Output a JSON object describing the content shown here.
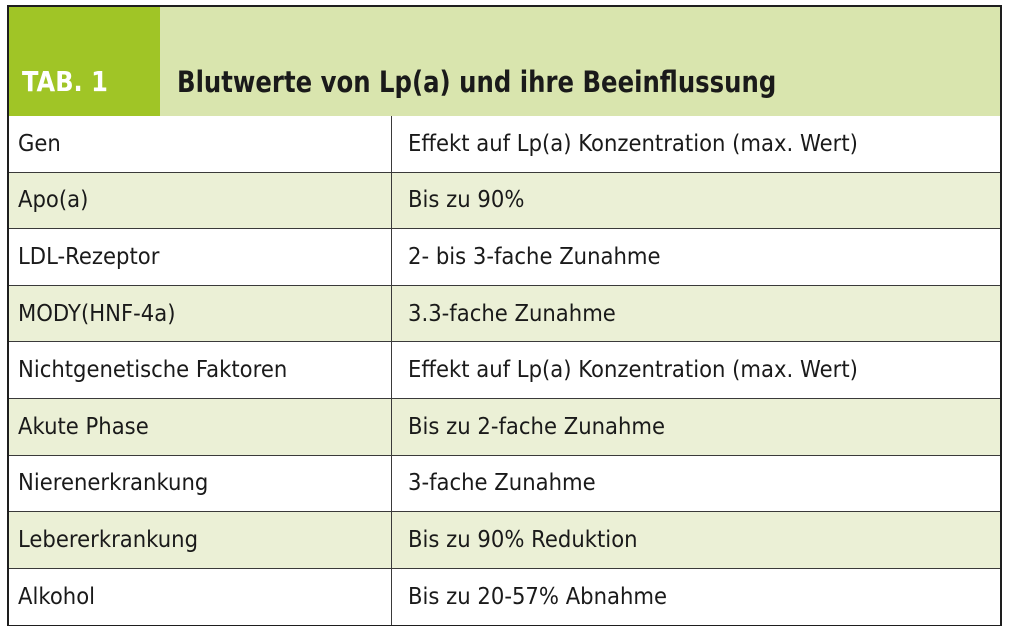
{
  "table": {
    "tab_label": "TAB. 1",
    "title": "Blutwerte von Lp(a) und ihre Beeinflussung",
    "rows": [
      [
        "Gen",
        "Effekt auf Lp(a) Konzentration (max. Wert)"
      ],
      [
        "Apo(a)",
        "Bis zu 90%"
      ],
      [
        "LDL-Rezeptor",
        "2- bis 3-fache Zunahme"
      ],
      [
        "MODY(HNF-4a)",
        "3.3-fache Zunahme"
      ],
      [
        "Nichtgenetische Faktoren",
        "Effekt auf Lp(a) Konzentration (max. Wert)"
      ],
      [
        "Akute Phase",
        "Bis zu 2-fache Zunahme"
      ],
      [
        "Nierenerkrankung",
        "3-fache Zunahme"
      ],
      [
        "Lebererkrankung",
        "Bis zu 90% Reduktion"
      ],
      [
        "Alkohol",
        "Bis zu 20-57% Abnahme"
      ]
    ],
    "colors": {
      "header_bg": "#d9e5ae",
      "tab_bg": "#a0c526",
      "row_alt_bg": "#ebf0d6",
      "border": "#1e1e1e"
    }
  }
}
